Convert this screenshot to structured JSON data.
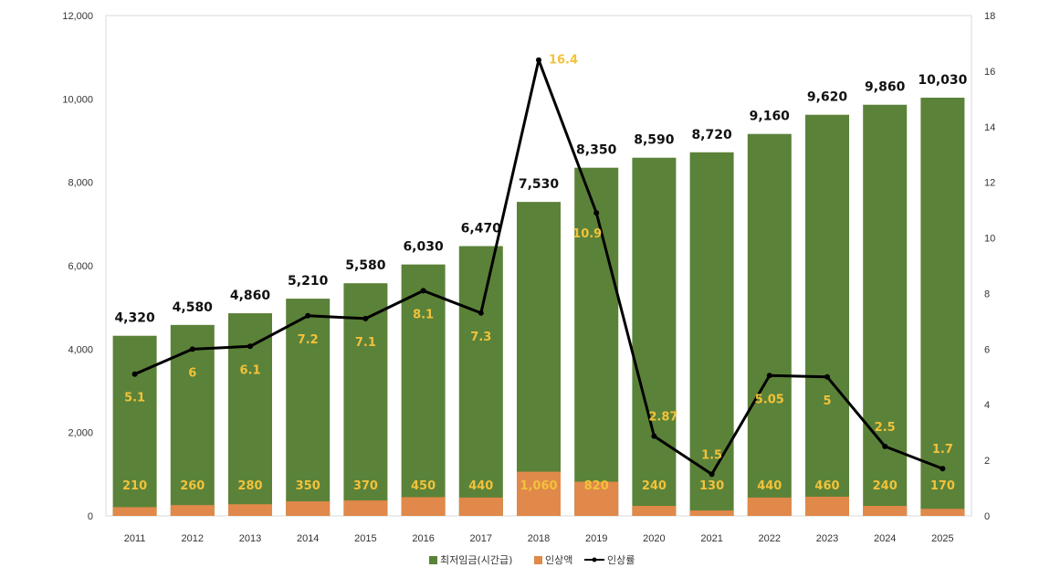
{
  "colors": {
    "wage": "#5b8239",
    "increase": "#e0894a",
    "rate_line": "#000000",
    "label_yellow": "#f2c23a"
  },
  "chart_data": {
    "type": "bar",
    "categories": [
      "2011",
      "2012",
      "2013",
      "2014",
      "2015",
      "2016",
      "2017",
      "2018",
      "2019",
      "2020",
      "2021",
      "2022",
      "2023",
      "2024",
      "2025"
    ],
    "series": [
      {
        "name": "최저임금(시간급)",
        "type": "bar",
        "values": [
          4320,
          4580,
          4860,
          5210,
          5580,
          6030,
          6470,
          7530,
          8350,
          8590,
          8720,
          9160,
          9620,
          9860,
          10030
        ]
      },
      {
        "name": "인상액",
        "type": "bar",
        "values": [
          210,
          260,
          280,
          350,
          370,
          450,
          440,
          1060,
          820,
          240,
          130,
          440,
          460,
          240,
          170
        ]
      },
      {
        "name": "인상률",
        "type": "line",
        "axis": "right",
        "values": [
          5.1,
          6,
          6.1,
          7.2,
          7.1,
          8.1,
          7.3,
          16.4,
          10.9,
          2.87,
          1.5,
          5.05,
          5,
          2.5,
          1.7
        ]
      }
    ],
    "total_labels": [
      "4,320",
      "4,580",
      "4,860",
      "5,210",
      "5,580",
      "6,030",
      "6,470",
      "7,530",
      "8,350",
      "8,590",
      "8,720",
      "9,160",
      "9,620",
      "9,860",
      "10,030"
    ],
    "increase_labels": [
      "210",
      "260",
      "280",
      "350",
      "370",
      "450",
      "440",
      "1,060",
      "820",
      "240",
      "130",
      "440",
      "460",
      "240",
      "170"
    ],
    "rate_labels": [
      "5.1",
      "6",
      "6.1",
      "7.2",
      "7.1",
      "8.1",
      "7.3",
      "16.4",
      "10.9",
      "2.87",
      "1.5",
      "5.05",
      "5",
      "2.5",
      "1.7"
    ],
    "y_left": {
      "range": [
        0,
        12000
      ],
      "ticks": [
        "0",
        "2,000",
        "4,000",
        "6,000",
        "8,000",
        "10,000",
        "12,000"
      ]
    },
    "y_right": {
      "range": [
        0,
        18
      ],
      "ticks": [
        "0",
        "2",
        "4",
        "6",
        "8",
        "10",
        "12",
        "14",
        "16",
        "18"
      ]
    },
    "legend": {
      "position": "bottom",
      "items": [
        "최저임금(시간급)",
        "인상액",
        "인상률"
      ]
    }
  }
}
